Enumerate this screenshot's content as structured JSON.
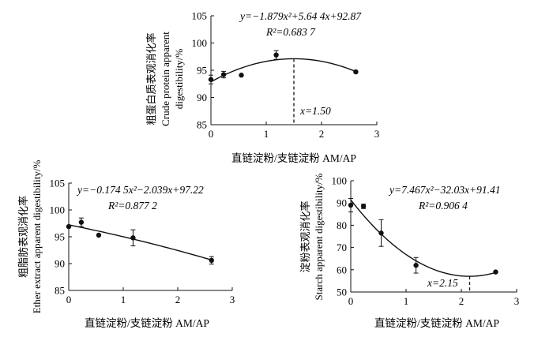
{
  "chart_data": [
    {
      "type": "scatter",
      "xlabel": "直链淀粉/支链淀粉  AM/AP",
      "ylabel_cn": "粗蛋白质表观消化率",
      "ylabel_en_1": "Crude protein apparent",
      "ylabel_en_2": "digestibility/%",
      "equation": "y=−1.879x²+5.64 4x+92.87",
      "r2": "R²=0.683 7",
      "vertex_label": "x=1.50",
      "vertex_x": 1.5,
      "xlim": [
        0,
        3
      ],
      "ylim": [
        85,
        105
      ],
      "xticks": [
        0,
        1,
        2,
        3
      ],
      "yticks": [
        85,
        90,
        95,
        100,
        105
      ],
      "xtick_labels": [
        "0",
        "1",
        "2",
        "3"
      ],
      "ytick_labels": [
        "85",
        "90",
        "95",
        "100",
        "105"
      ],
      "fit": {
        "a": -1.879,
        "b": 5.644,
        "c": 92.87
      },
      "points": [
        {
          "x": 0.0,
          "y": 93.3,
          "err": 0.8
        },
        {
          "x": 0.23,
          "y": 94.2,
          "err": 0.6
        },
        {
          "x": 0.55,
          "y": 94.1,
          "err": 0.0
        },
        {
          "x": 1.18,
          "y": 97.8,
          "err": 0.8
        },
        {
          "x": 2.62,
          "y": 94.7,
          "err": 0.0
        }
      ]
    },
    {
      "type": "scatter",
      "xlabel": "直链淀粉/支链淀粉  AM/AP",
      "ylabel_cn": "粗脂肪表观消化率",
      "ylabel_en_1": "Ether extract apparent digestibility/%",
      "equation": "y=−0.174 5x²−2.039x+97.22",
      "r2": "R²=0.877 2",
      "xlim": [
        0,
        3
      ],
      "ylim": [
        85,
        105
      ],
      "xticks": [
        0,
        1,
        2,
        3
      ],
      "yticks": [
        85,
        90,
        95,
        100,
        105
      ],
      "xtick_labels": [
        "0",
        "1",
        "2",
        "3"
      ],
      "ytick_labels": [
        "85",
        "90",
        "95",
        "100",
        "105"
      ],
      "fit": {
        "a": -0.1745,
        "b": -2.039,
        "c": 97.22
      },
      "points": [
        {
          "x": 0.0,
          "y": 96.9,
          "err": 0.0
        },
        {
          "x": 0.23,
          "y": 97.7,
          "err": 0.8
        },
        {
          "x": 0.55,
          "y": 95.3,
          "err": 0.0
        },
        {
          "x": 1.18,
          "y": 94.8,
          "err": 1.5
        },
        {
          "x": 2.62,
          "y": 90.6,
          "err": 0.7
        }
      ]
    },
    {
      "type": "scatter",
      "xlabel": "直链淀粉/支链淀粉  AM/AP",
      "ylabel_cn": "淀粉表观消化率",
      "ylabel_en_1": "Starch apparent digestibility/%",
      "equation": "y=7.467x²−32.03x+91.41",
      "r2": "R²=0.906 4",
      "vertex_label": "x=2.15",
      "vertex_x": 2.15,
      "xlim": [
        0,
        3
      ],
      "ylim": [
        50,
        100
      ],
      "xticks": [
        0,
        1,
        2,
        3
      ],
      "yticks": [
        50,
        60,
        70,
        80,
        90,
        100
      ],
      "xtick_labels": [
        "0",
        "1",
        "2",
        "3"
      ],
      "ytick_labels": [
        "50",
        "60",
        "70",
        "80",
        "90",
        "100"
      ],
      "fit": {
        "a": 7.467,
        "b": -32.03,
        "c": 91.41
      },
      "points": [
        {
          "x": 0.0,
          "y": 89.0,
          "err": 3.0
        },
        {
          "x": 0.23,
          "y": 88.5,
          "err": 1.0
        },
        {
          "x": 0.55,
          "y": 76.5,
          "err": 6.0
        },
        {
          "x": 1.18,
          "y": 62.0,
          "err": 3.5
        },
        {
          "x": 2.62,
          "y": 59.0,
          "err": 0.0
        }
      ]
    }
  ]
}
